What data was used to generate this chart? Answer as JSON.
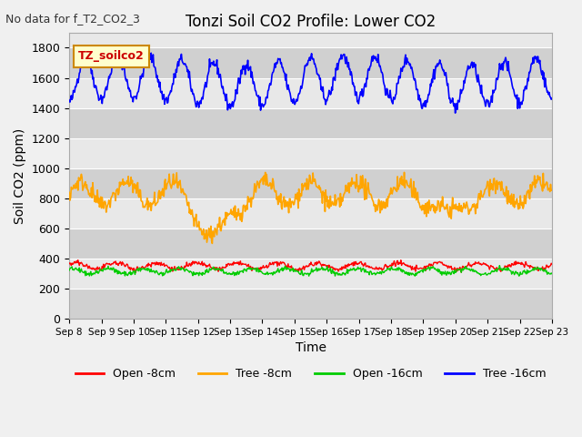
{
  "title": "Tonzi Soil CO2 Profile: Lower CO2",
  "subtitle": "No data for f_T2_CO2_3",
  "xlabel": "Time",
  "ylabel": "Soil CO2 (ppm)",
  "ylim": [
    0,
    1900
  ],
  "yticks": [
    0,
    200,
    400,
    600,
    800,
    1000,
    1200,
    1400,
    1600,
    1800
  ],
  "xticklabels": [
    "Sep 8",
    "Sep 9",
    "Sep 10",
    "Sep 11",
    "Sep 12",
    "Sep 13",
    "Sep 14",
    "Sep 15",
    "Sep 16",
    "Sep 17",
    "Sep 18",
    "Sep 19",
    "Sep 20",
    "Sep 21",
    "Sep 22",
    "Sep 23"
  ],
  "legend_labels": [
    "Open -8cm",
    "Tree -8cm",
    "Open -16cm",
    "Tree -16cm"
  ],
  "legend_colors": [
    "#ff0000",
    "#ffa500",
    "#00cc00",
    "#0000ff"
  ],
  "inset_label": "TZ_soilco2",
  "inset_bg": "#ffffcc",
  "inset_border": "#cc8800",
  "colors": {
    "open_8cm": "#ff0000",
    "tree_8cm": "#ffa500",
    "open_16cm": "#00cc00",
    "tree_16cm": "#0000ff"
  },
  "bg_color": "#e8e8e8",
  "n_days": 15,
  "pts_per_day": 48
}
